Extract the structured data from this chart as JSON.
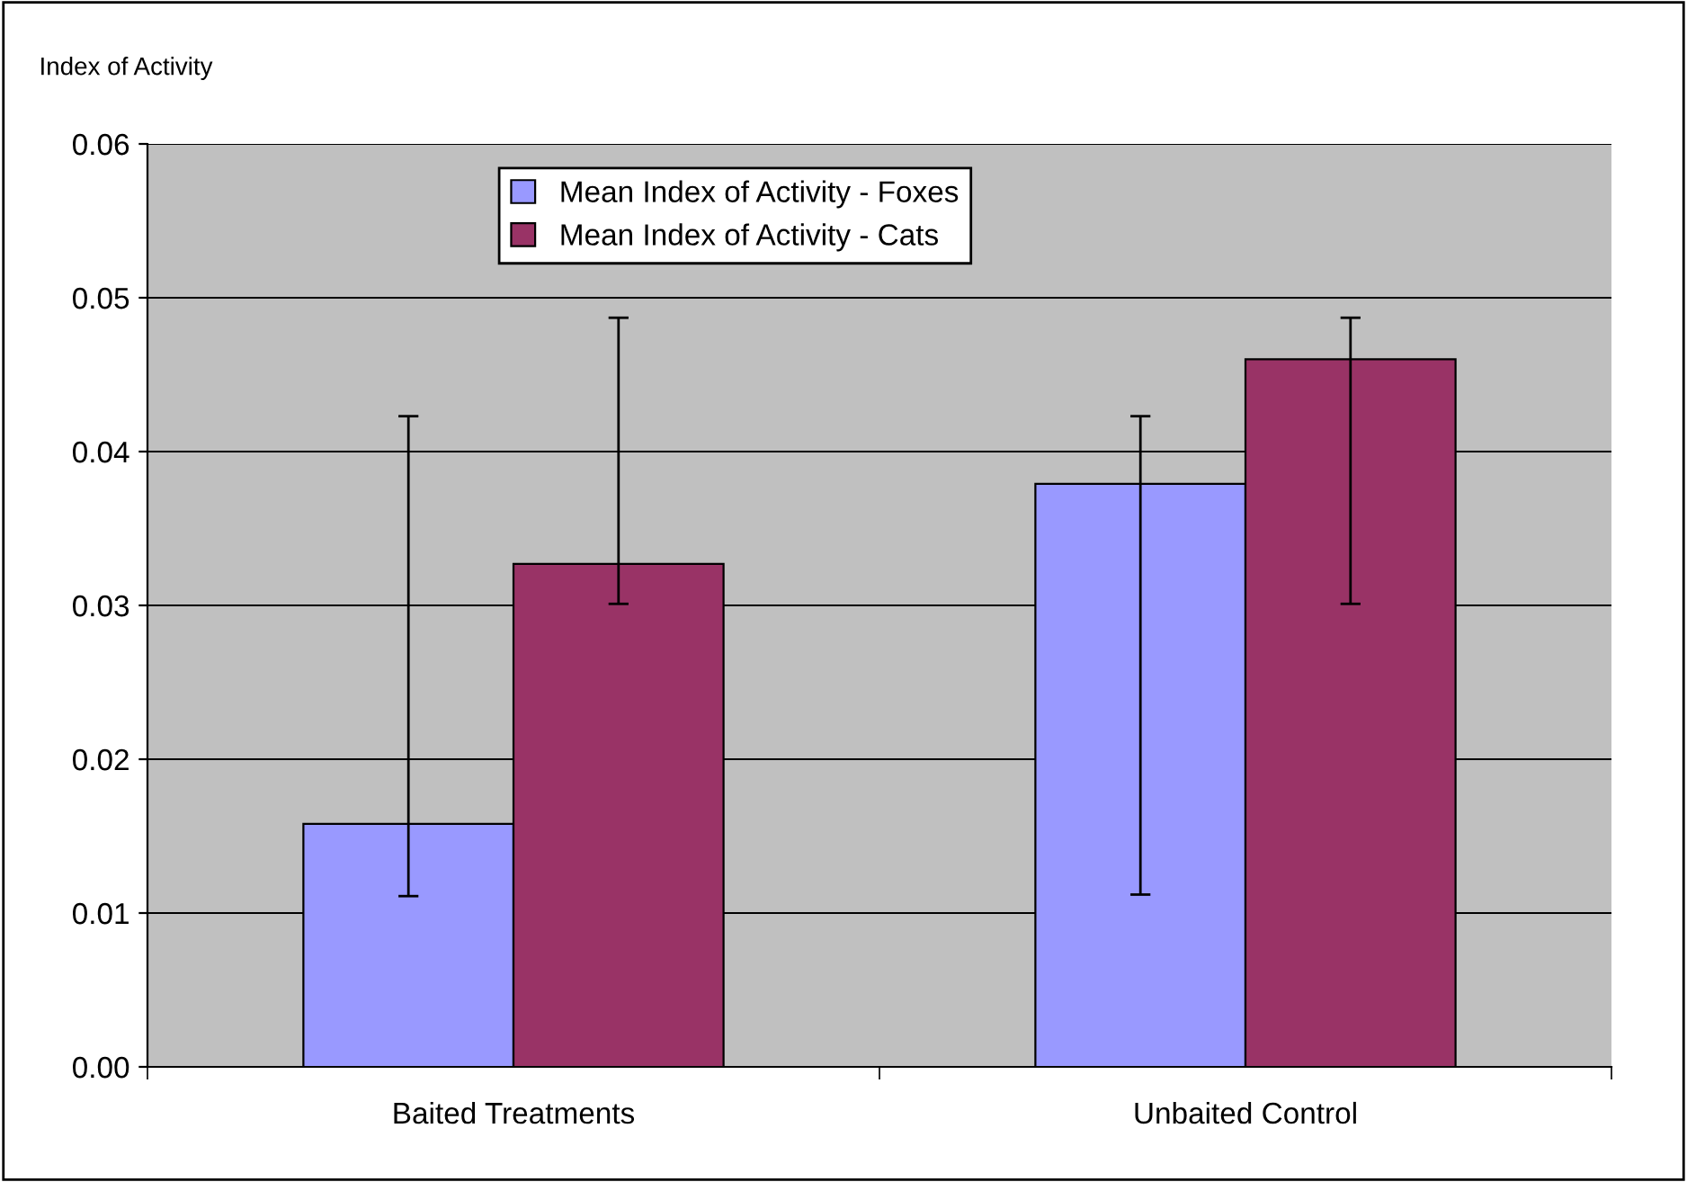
{
  "chart_data": {
    "type": "bar",
    "ylabel": "Index of Activity",
    "categories": [
      "Baited Treatments",
      "Unbaited Control"
    ],
    "series": [
      {
        "name": "Mean Index of Activity - Foxes",
        "color": "#9999ff",
        "values": [
          0.0158,
          0.0379
        ],
        "errors": [
          [
            0.0111,
            0.0423
          ],
          [
            0.0112,
            0.0423
          ]
        ]
      },
      {
        "name": "Mean Index of Activity - Cats",
        "color": "#993366",
        "values": [
          0.0327,
          0.046
        ],
        "errors": [
          [
            0.0301,
            0.0487
          ],
          [
            0.0301,
            0.0487
          ]
        ]
      }
    ],
    "ylim": [
      0,
      0.06
    ],
    "yticks": [
      {
        "value": 0,
        "label": "0.00"
      },
      {
        "value": 0.01,
        "label": "0.01"
      },
      {
        "value": 0.02,
        "label": "0.02"
      },
      {
        "value": 0.03,
        "label": "0.03"
      },
      {
        "value": 0.04,
        "label": "0.04"
      },
      {
        "value": 0.05,
        "label": "0.05"
      },
      {
        "value": 0.06,
        "label": "0.06"
      }
    ],
    "grid": "y",
    "legend": "top"
  }
}
